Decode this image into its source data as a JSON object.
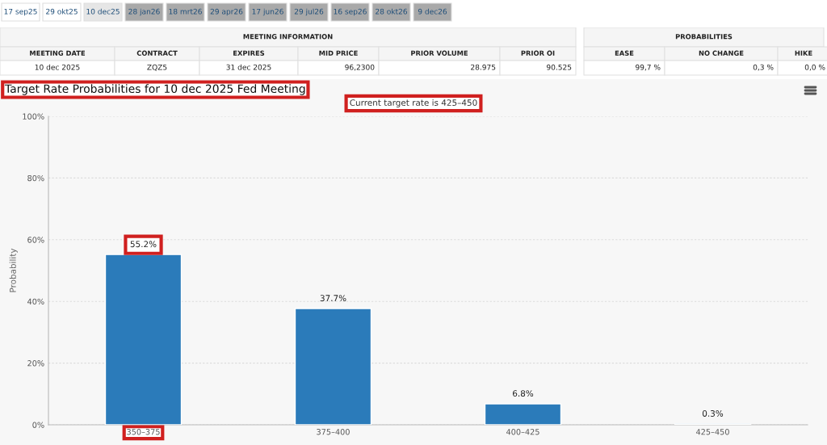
{
  "chart_data": [
    {
      "type": "other",
      "annotations": [
        "17 sep25",
        "29 okt25",
        "10 dec25",
        "28 jan26",
        "18 mrt26",
        "29 apr26",
        "17 jun26",
        "29 jul26",
        "16 sep26",
        "28 okt26",
        "9 dec26"
      ],
      "colors": [
        "#ffffff",
        "#ffffff",
        "#e6e6e6",
        "#a9a9a9",
        "#a9a9a9",
        "#a9a9a9",
        "#a9a9a9",
        "#a9a9a9",
        "#a9a9a9",
        "#a9a9a9",
        "#a9a9a9"
      ]
    },
    {
      "type": "other",
      "title": "MEETING INFORMATION",
      "subtitle": "PROBABILITIES",
      "categories": [
        "MEETING DATE",
        "CONTRACT",
        "EXPIRES",
        "MID PRICE",
        "PRIOR VOLUME",
        "PRIOR OI",
        "EASE",
        "NO CHANGE",
        "HIKE"
      ],
      "cell_labels": [
        [
          "10 dec 2025",
          "ZQZ5",
          "31 dec 2025",
          "96,2300",
          "28.975",
          "90.525",
          "99,7 %",
          "0,3 %",
          "0,0 %"
        ]
      ]
    },
    {
      "type": "bar",
      "title": "Target Rate Probabilities for 10 dec 2025 Fed Meeting",
      "subtitle": "Current target rate is 425–450",
      "ylabel": "Probability",
      "categories": [
        "350–375",
        "375–400",
        "400–425",
        "425–450"
      ],
      "values": [
        55.2,
        37.7,
        6.8,
        0.3
      ],
      "color": "#2b7bba",
      "value_labels": [
        "55.2%",
        "37.7%",
        "6.8%",
        "0.3%"
      ],
      "ylim": [
        0,
        100
      ],
      "yticks": [
        {
          "value": 0,
          "label": "0%"
        },
        {
          "value": 20,
          "label": "20%"
        },
        {
          "value": 40,
          "label": "40%"
        },
        {
          "value": 60,
          "label": "60%"
        },
        {
          "value": 80,
          "label": "80%"
        },
        {
          "value": 100,
          "label": "100%"
        }
      ],
      "grid": "y"
    }
  ]
}
